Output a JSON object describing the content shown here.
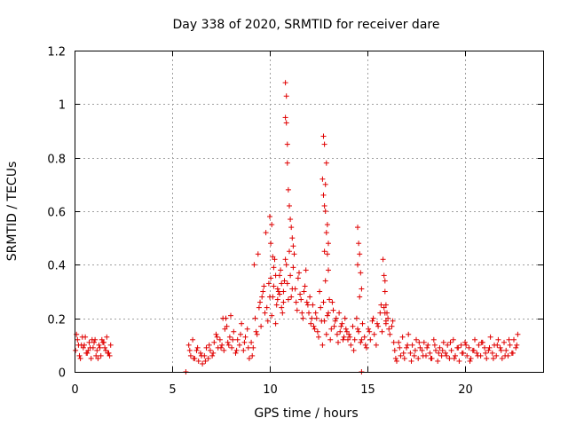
{
  "chart_data": {
    "type": "scatter",
    "title": "Day 338 of 2020, SRMTID for receiver dare",
    "xlabel": "GPS time / hours",
    "ylabel": "SRMTID / TECUs",
    "xlim": [
      0,
      24
    ],
    "ylim": [
      0,
      1.2
    ],
    "x_ticks": [
      0,
      5,
      10,
      15,
      20
    ],
    "y_ticks": [
      0,
      0.2,
      0.4,
      0.6,
      0.8,
      1,
      1.2
    ],
    "x_tick_labels": [
      "0",
      "5",
      "10",
      "15",
      "20"
    ],
    "y_tick_labels": [
      "0",
      "0.2",
      "0.4",
      "0.6",
      "0.8",
      "1",
      "1.2"
    ],
    "grid": true,
    "marker": "+",
    "color": "#e00000",
    "series": [
      {
        "name": "SRMTID",
        "x": [
          0.05,
          0.15,
          0.25,
          0.35,
          0.45,
          0.55,
          0.65,
          0.75,
          0.85,
          0.95,
          1.05,
          1.15,
          1.25,
          1.35,
          1.45,
          1.55,
          1.65,
          1.75,
          1.85,
          0.1,
          0.3,
          0.5,
          0.7,
          0.9,
          1.1,
          1.3,
          1.5,
          1.7,
          0.2,
          0.4,
          0.6,
          0.8,
          1.0,
          1.2,
          1.4,
          1.6,
          1.8,
          5.7,
          14.7,
          5.85,
          5.95,
          6.05,
          6.15,
          6.25,
          6.35,
          6.45,
          6.55,
          6.65,
          6.75,
          6.85,
          6.95,
          7.05,
          7.15,
          7.25,
          7.35,
          7.45,
          7.55,
          7.65,
          7.75,
          7.85,
          7.95,
          8.05,
          8.15,
          8.25,
          8.35,
          8.45,
          8.55,
          8.65,
          8.75,
          8.85,
          8.95,
          9.05,
          9.15,
          9.25,
          9.35,
          9.45,
          9.55,
          9.65,
          9.75,
          5.9,
          6.1,
          6.3,
          6.5,
          6.7,
          6.9,
          7.1,
          7.3,
          7.5,
          7.7,
          7.9,
          8.1,
          8.3,
          8.5,
          8.7,
          8.9,
          9.1,
          9.3,
          9.5,
          9.7,
          7.6,
          7.8,
          8.0,
          9.2,
          9.4,
          9.6,
          9.8,
          9.85,
          9.95,
          10.05,
          10.15,
          10.25,
          10.35,
          10.45,
          10.55,
          10.65,
          10.75,
          10.85,
          10.95,
          11.05,
          11.15,
          11.25,
          11.35,
          11.45,
          11.55,
          11.65,
          11.75,
          11.85,
          11.95,
          9.9,
          10.0,
          10.1,
          10.2,
          10.3,
          10.4,
          10.5,
          10.6,
          10.7,
          10.8,
          10.9,
          11.0,
          11.1,
          11.2,
          11.3,
          11.4,
          11.5,
          11.6,
          11.7,
          11.8,
          11.9,
          10.8,
          10.8,
          10.85,
          10.85,
          10.9,
          10.9,
          10.95,
          11.0,
          11.05,
          11.1,
          11.15,
          11.2,
          10.0,
          10.05,
          10.1,
          10.15,
          10.2,
          10.3,
          10.4,
          10.5,
          10.6,
          10.7,
          12.0,
          12.1,
          12.2,
          12.3,
          12.4,
          12.5,
          12.6,
          12.7,
          12.8,
          12.9,
          13.0,
          13.1,
          13.2,
          13.3,
          13.4,
          13.5,
          13.6,
          13.7,
          13.8,
          13.9,
          14.0,
          12.05,
          12.15,
          12.25,
          12.35,
          12.45,
          12.55,
          12.65,
          12.75,
          12.85,
          12.95,
          13.05,
          13.15,
          13.25,
          13.35,
          13.45,
          13.55,
          13.65,
          13.75,
          13.85,
          13.95,
          12.7,
          12.75,
          12.8,
          12.8,
          12.85,
          12.9,
          12.95,
          13.0,
          12.85,
          12.9,
          12.95,
          13.0,
          12.75,
          12.8,
          14.05,
          14.15,
          14.25,
          14.35,
          14.45,
          14.55,
          14.65,
          14.75,
          14.85,
          14.95,
          15.05,
          15.15,
          15.25,
          15.35,
          15.45,
          15.55,
          15.65,
          15.75,
          15.85,
          15.95,
          16.05,
          16.15,
          16.25,
          16.35,
          14.1,
          14.3,
          14.5,
          14.7,
          14.9,
          15.1,
          15.3,
          15.5,
          15.7,
          15.9,
          16.1,
          16.3,
          14.5,
          14.55,
          14.6,
          14.65,
          14.7,
          14.5,
          14.6,
          15.8,
          15.85,
          15.9,
          15.95,
          16.0,
          15.9,
          15.95,
          16.4,
          16.5,
          16.6,
          16.7,
          16.8,
          16.9,
          17.0,
          17.1,
          17.2,
          17.3,
          17.4,
          17.5,
          17.6,
          17.7,
          17.8,
          17.9,
          18.0,
          18.1,
          18.2,
          18.3,
          18.4,
          18.5,
          18.6,
          18.7,
          18.8,
          18.9,
          19.0,
          19.1,
          19.2,
          19.3,
          19.4,
          19.5,
          19.6,
          19.7,
          19.8,
          19.9,
          20.0,
          20.1,
          20.2,
          20.3,
          20.4,
          20.5,
          20.6,
          20.7,
          20.8,
          20.9,
          21.0,
          21.1,
          21.2,
          21.3,
          21.4,
          21.5,
          21.6,
          21.7,
          21.8,
          21.9,
          22.0,
          22.1,
          22.2,
          22.3,
          22.4,
          22.5,
          22.6,
          22.7,
          16.45,
          16.65,
          16.85,
          17.05,
          17.25,
          17.45,
          17.65,
          17.85,
          18.05,
          18.25,
          18.45,
          18.65,
          18.85,
          19.05,
          19.25,
          19.45,
          19.65,
          19.85,
          20.05,
          20.25,
          20.45,
          20.65,
          20.85,
          21.05,
          21.25,
          21.45,
          21.65,
          21.85,
          22.05,
          22.25,
          22.45,
          22.65
        ],
        "y": [
          0.08,
          0.12,
          0.06,
          0.1,
          0.09,
          0.13,
          0.07,
          0.11,
          0.05,
          0.09,
          0.12,
          0.08,
          0.1,
          0.06,
          0.11,
          0.09,
          0.13,
          0.07,
          0.1,
          0.14,
          0.05,
          0.1,
          0.08,
          0.12,
          0.06,
          0.09,
          0.11,
          0.07,
          0.1,
          0.13,
          0.07,
          0.09,
          0.11,
          0.05,
          0.12,
          0.08,
          0.06,
          0.0,
          0.0,
          0.1,
          0.06,
          0.12,
          0.05,
          0.08,
          0.04,
          0.07,
          0.03,
          0.06,
          0.09,
          0.05,
          0.08,
          0.06,
          0.11,
          0.14,
          0.09,
          0.12,
          0.1,
          0.08,
          0.2,
          0.11,
          0.13,
          0.09,
          0.15,
          0.07,
          0.12,
          0.1,
          0.18,
          0.08,
          0.13,
          0.16,
          0.05,
          0.11,
          0.09,
          0.2,
          0.14,
          0.24,
          0.17,
          0.3,
          0.22,
          0.08,
          0.05,
          0.09,
          0.06,
          0.04,
          0.1,
          0.07,
          0.13,
          0.09,
          0.16,
          0.1,
          0.12,
          0.08,
          0.14,
          0.11,
          0.09,
          0.06,
          0.15,
          0.26,
          0.32,
          0.2,
          0.17,
          0.21,
          0.4,
          0.44,
          0.28,
          0.52,
          0.24,
          0.33,
          0.35,
          0.28,
          0.42,
          0.25,
          0.3,
          0.38,
          0.22,
          0.34,
          0.4,
          0.27,
          0.36,
          0.31,
          0.44,
          0.26,
          0.35,
          0.29,
          0.22,
          0.3,
          0.38,
          0.25,
          0.19,
          0.28,
          0.21,
          0.32,
          0.18,
          0.27,
          0.36,
          0.24,
          0.3,
          0.42,
          0.33,
          0.45,
          0.28,
          0.39,
          0.31,
          0.23,
          0.37,
          0.27,
          0.2,
          0.32,
          0.26,
          0.95,
          1.08,
          0.93,
          1.03,
          0.85,
          0.78,
          0.68,
          0.62,
          0.57,
          0.54,
          0.5,
          0.47,
          0.58,
          0.48,
          0.55,
          0.43,
          0.39,
          0.36,
          0.31,
          0.29,
          0.33,
          0.26,
          0.22,
          0.18,
          0.25,
          0.16,
          0.2,
          0.13,
          0.24,
          0.1,
          0.19,
          0.14,
          0.22,
          0.12,
          0.26,
          0.17,
          0.2,
          0.11,
          0.15,
          0.18,
          0.13,
          0.16,
          0.12,
          0.28,
          0.2,
          0.17,
          0.22,
          0.15,
          0.3,
          0.19,
          0.26,
          0.34,
          0.21,
          0.27,
          0.16,
          0.23,
          0.19,
          0.14,
          0.22,
          0.17,
          0.12,
          0.2,
          0.15,
          0.72,
          0.88,
          0.85,
          0.62,
          0.7,
          0.78,
          0.55,
          0.48,
          0.6,
          0.52,
          0.44,
          0.38,
          0.66,
          0.45,
          0.14,
          0.1,
          0.17,
          0.12,
          0.2,
          0.15,
          0.11,
          0.18,
          0.13,
          0.09,
          0.16,
          0.12,
          0.19,
          0.14,
          0.1,
          0.17,
          0.22,
          0.15,
          0.24,
          0.18,
          0.2,
          0.14,
          0.17,
          0.11,
          0.13,
          0.08,
          0.16,
          0.12,
          0.1,
          0.15,
          0.2,
          0.18,
          0.25,
          0.22,
          0.16,
          0.19,
          0.54,
          0.48,
          0.44,
          0.37,
          0.31,
          0.4,
          0.28,
          0.42,
          0.36,
          0.3,
          0.25,
          0.22,
          0.34,
          0.19,
          0.08,
          0.04,
          0.11,
          0.06,
          0.13,
          0.05,
          0.09,
          0.14,
          0.07,
          0.1,
          0.06,
          0.12,
          0.05,
          0.09,
          0.08,
          0.11,
          0.06,
          0.1,
          0.07,
          0.05,
          0.12,
          0.08,
          0.04,
          0.09,
          0.06,
          0.11,
          0.07,
          0.1,
          0.05,
          0.08,
          0.12,
          0.06,
          0.09,
          0.04,
          0.1,
          0.07,
          0.11,
          0.06,
          0.09,
          0.05,
          0.08,
          0.12,
          0.07,
          0.1,
          0.06,
          0.11,
          0.09,
          0.05,
          0.08,
          0.13,
          0.07,
          0.1,
          0.06,
          0.12,
          0.09,
          0.05,
          0.11,
          0.08,
          0.06,
          0.1,
          0.07,
          0.12,
          0.09,
          0.14,
          0.05,
          0.09,
          0.07,
          0.1,
          0.04,
          0.08,
          0.11,
          0.06,
          0.09,
          0.05,
          0.1,
          0.07,
          0.08,
          0.06,
          0.11,
          0.05,
          0.09,
          0.07,
          0.1,
          0.04,
          0.08,
          0.06,
          0.11,
          0.07,
          0.09,
          0.05,
          0.1,
          0.08,
          0.06,
          0.12,
          0.07,
          0.1
        ]
      }
    ]
  }
}
